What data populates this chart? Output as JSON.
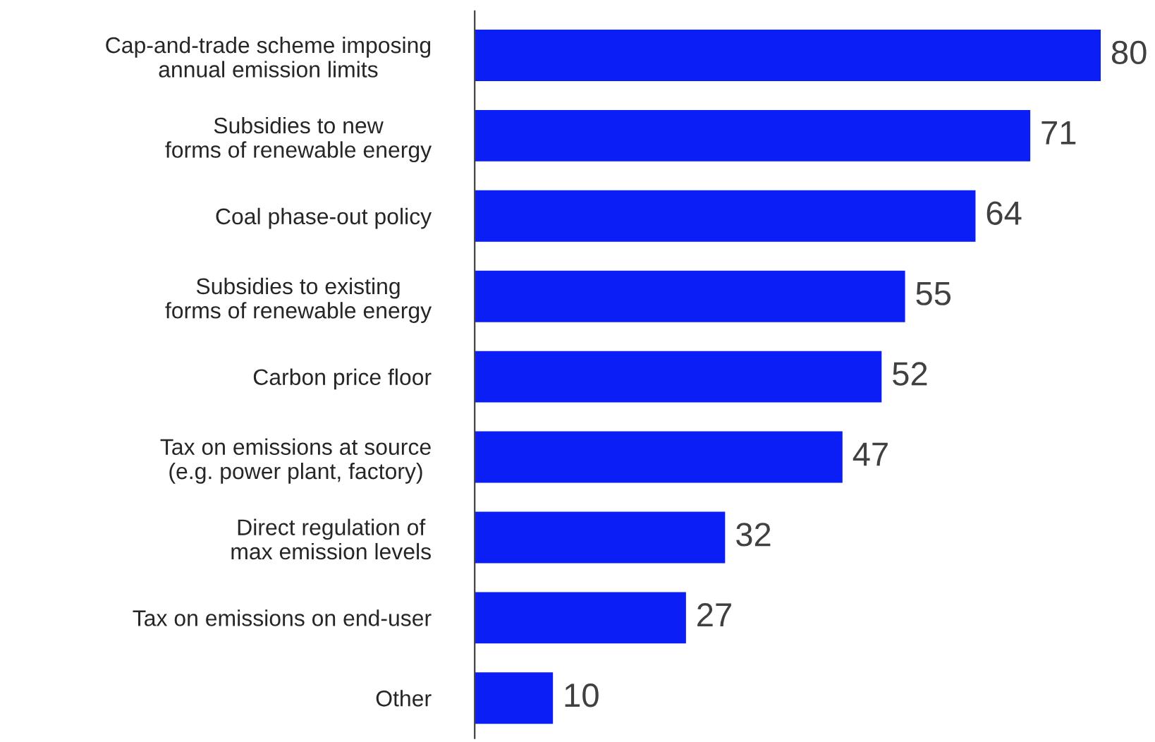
{
  "chart_data": {
    "type": "bar",
    "orientation": "horizontal",
    "categories": [
      "Cap-and-trade scheme imposing\nannual emission limits",
      "Subsidies to new\nforms of renewable energy",
      "Coal phase-out policy",
      "Subsidies to existing\nforms of renewable energy",
      "Carbon price floor",
      "Tax on emissions at source\n(e.g. power plant, factory)",
      "Direct regulation of\nmax emission levels",
      "Tax on emissions on end-user",
      "Other"
    ],
    "values": [
      80,
      71,
      64,
      55,
      52,
      47,
      32,
      27,
      10
    ],
    "color": "#0a1ef5",
    "data_labels": true,
    "tick_labels": "y"
  }
}
